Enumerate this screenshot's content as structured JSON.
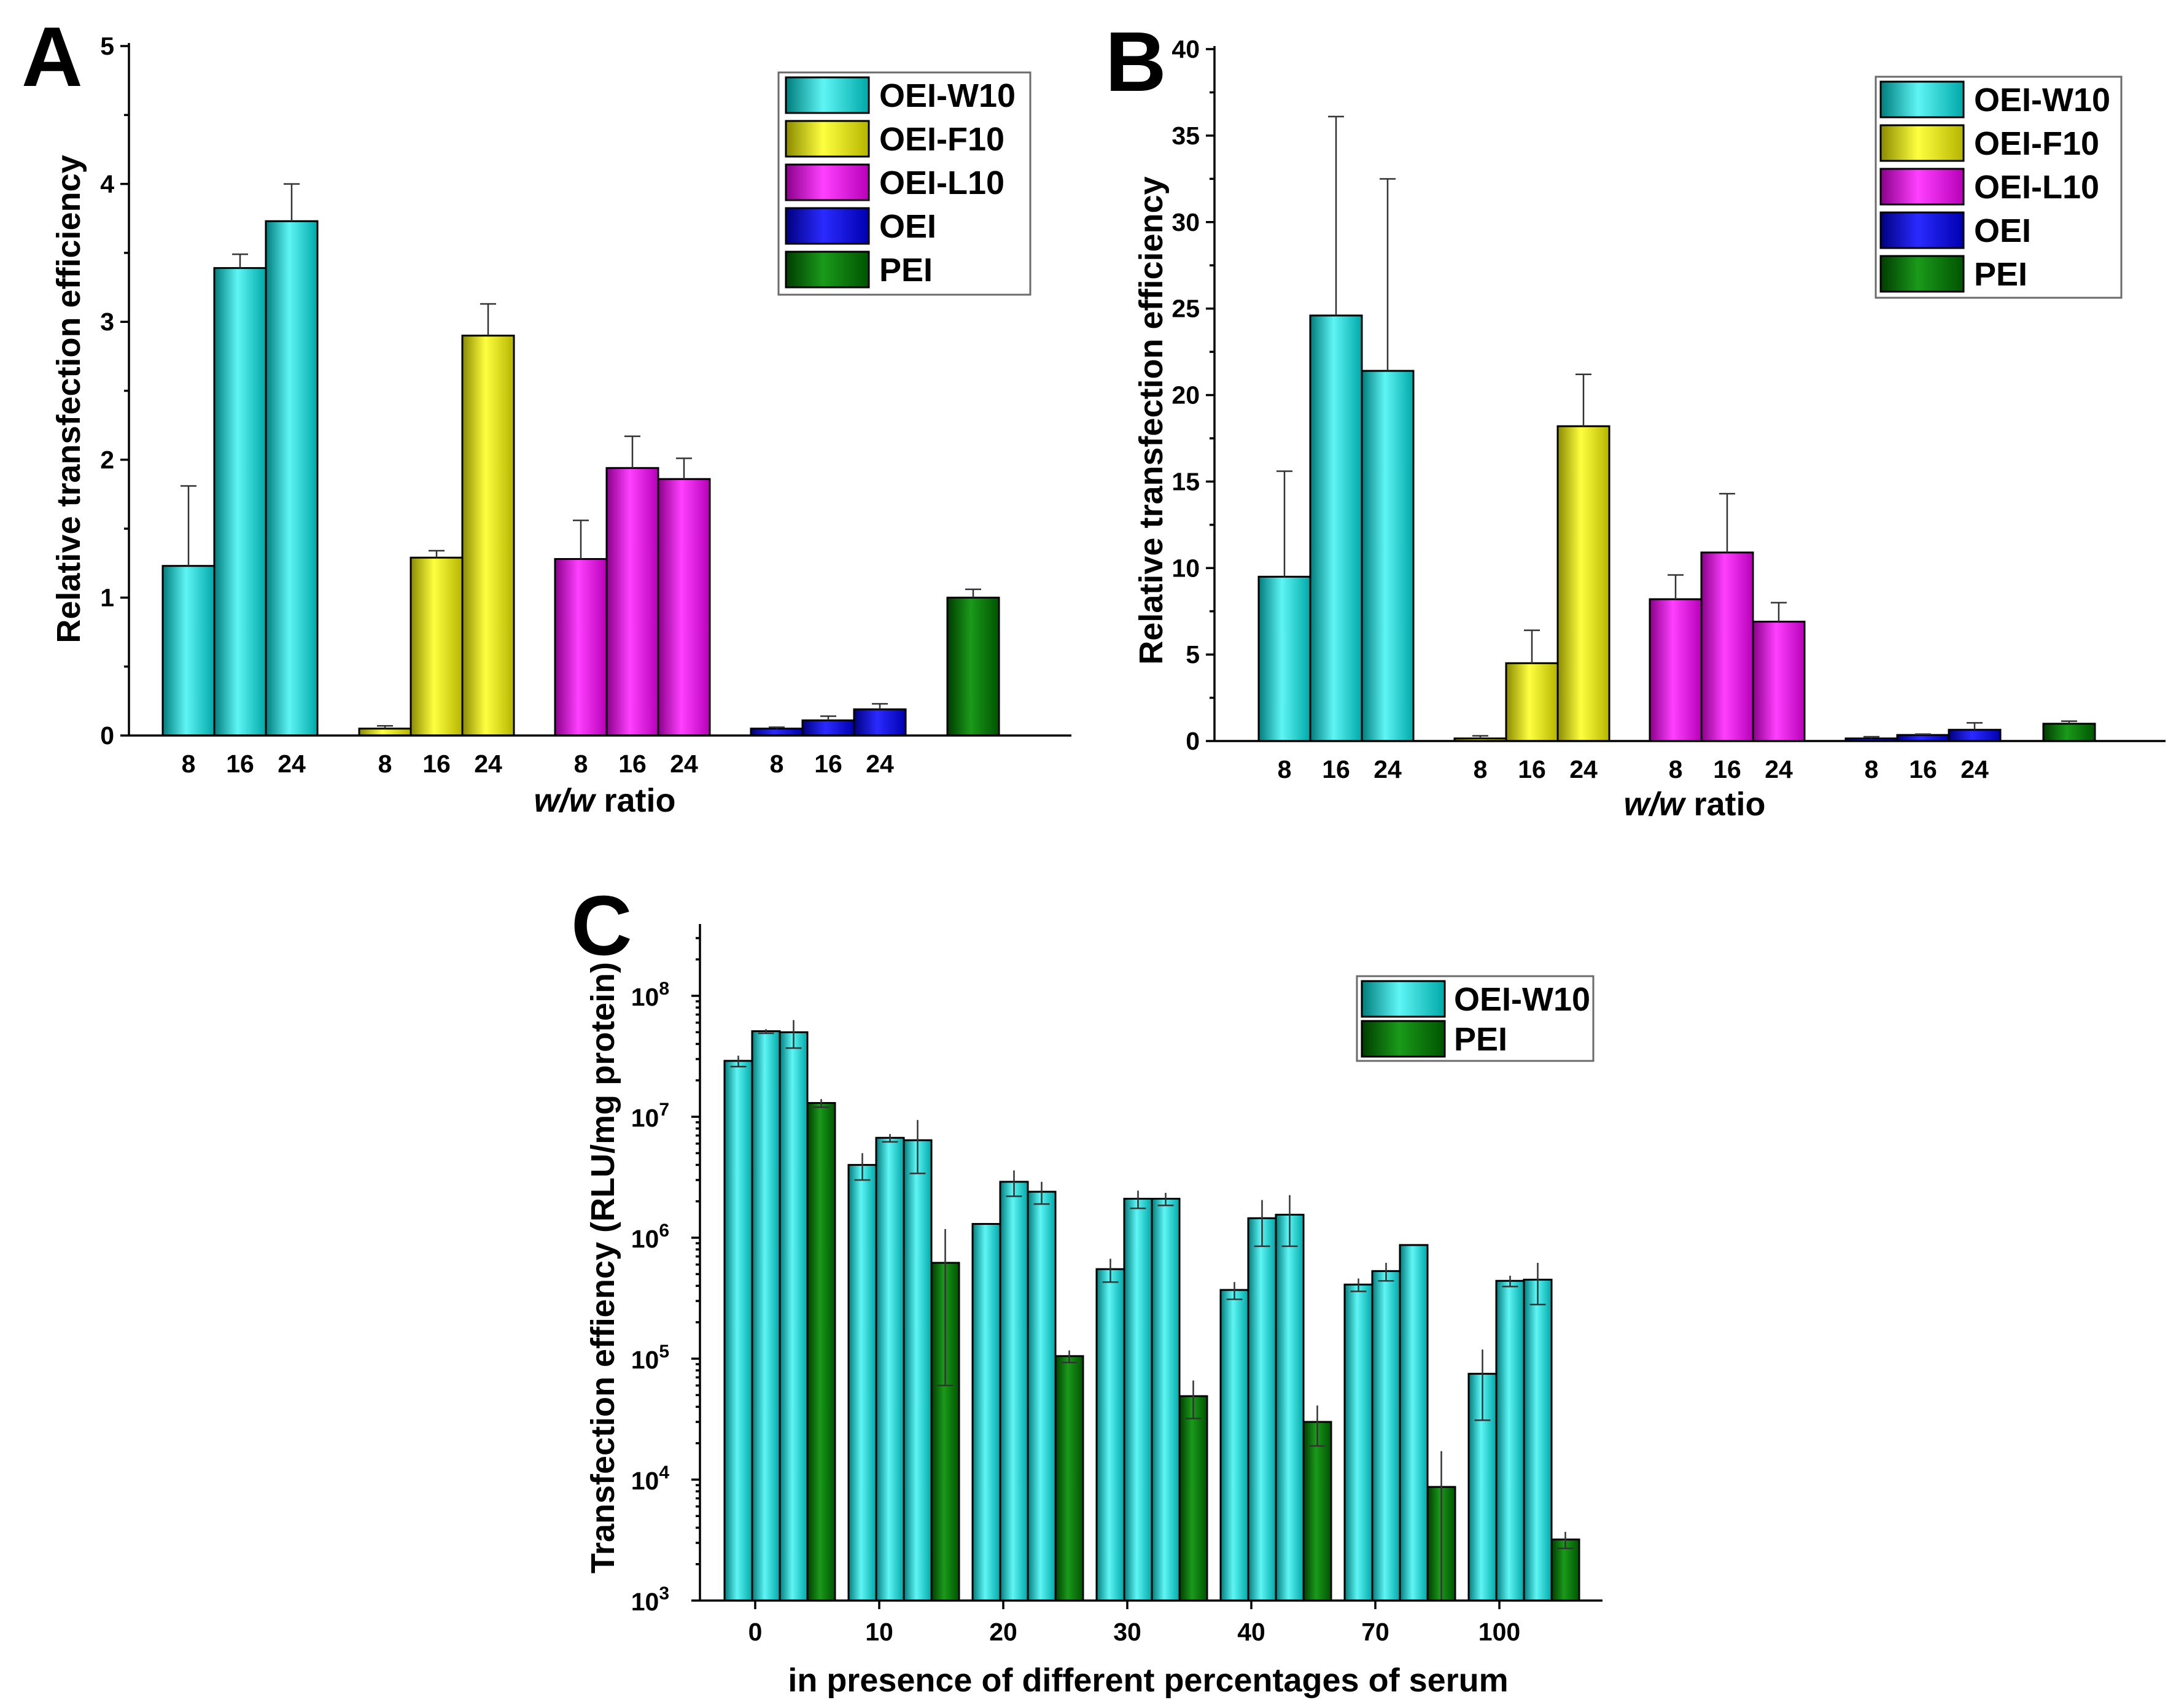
{
  "colors": {
    "OEI-W10": "#00d2d2",
    "OEI-F10": "#e0e000",
    "OEI-L10": "#e600e6",
    "OEI": "#0000d8",
    "PEI": "#006f00"
  },
  "chart_data": [
    {
      "panel": "A",
      "type": "bar",
      "ylabel": "Relative transfection efficiency",
      "xlabel_italic": "w/w",
      "xlabel_rest": " ratio",
      "ylim": [
        0,
        5
      ],
      "yticks": [
        "0",
        "1",
        "2",
        "3",
        "4",
        "5"
      ],
      "legend": [
        "OEI-W10",
        "OEI-F10",
        "OEI-L10",
        "OEI",
        "PEI"
      ],
      "groups": [
        {
          "series": "OEI-W10",
          "bars": [
            {
              "label": "8",
              "value": 1.23,
              "err": 0.58
            },
            {
              "label": "16",
              "value": 3.39,
              "err": 0.1
            },
            {
              "label": "24",
              "value": 3.73,
              "err": 0.27
            }
          ]
        },
        {
          "series": "OEI-F10",
          "bars": [
            {
              "label": "8",
              "value": 0.05,
              "err": 0.02
            },
            {
              "label": "16",
              "value": 1.29,
              "err": 0.05
            },
            {
              "label": "24",
              "value": 2.9,
              "err": 0.23
            }
          ]
        },
        {
          "series": "OEI-L10",
          "bars": [
            {
              "label": "8",
              "value": 1.28,
              "err": 0.28
            },
            {
              "label": "16",
              "value": 1.94,
              "err": 0.23
            },
            {
              "label": "24",
              "value": 1.86,
              "err": 0.15
            }
          ]
        },
        {
          "series": "OEI",
          "bars": [
            {
              "label": "8",
              "value": 0.05,
              "err": 0.01
            },
            {
              "label": "16",
              "value": 0.11,
              "err": 0.03
            },
            {
              "label": "24",
              "value": 0.19,
              "err": 0.04
            }
          ]
        },
        {
          "series": "PEI",
          "bars": [
            {
              "label": "",
              "value": 1.0,
              "err": 0.06
            }
          ]
        }
      ]
    },
    {
      "panel": "B",
      "type": "bar",
      "ylabel": "Relative transfection efficiency",
      "xlabel_italic": "w/w",
      "xlabel_rest": " ratio",
      "ylim": [
        0,
        40
      ],
      "yticks": [
        "0",
        "5",
        "10",
        "15",
        "20",
        "25",
        "30",
        "35",
        "40"
      ],
      "legend": [
        "OEI-W10",
        "OEI-F10",
        "OEI-L10",
        "OEI",
        "PEI"
      ],
      "groups": [
        {
          "series": "OEI-W10",
          "bars": [
            {
              "label": "8",
              "value": 9.5,
              "err": 6.1
            },
            {
              "label": "16",
              "value": 24.6,
              "err": 11.5
            },
            {
              "label": "24",
              "value": 21.4,
              "err": 11.1
            }
          ]
        },
        {
          "series": "OEI-F10",
          "bars": [
            {
              "label": "8",
              "value": 0.15,
              "err": 0.15
            },
            {
              "label": "16",
              "value": 4.5,
              "err": 1.9
            },
            {
              "label": "24",
              "value": 18.2,
              "err": 3.0
            }
          ]
        },
        {
          "series": "OEI-L10",
          "bars": [
            {
              "label": "8",
              "value": 8.2,
              "err": 1.4
            },
            {
              "label": "16",
              "value": 10.9,
              "err": 3.4
            },
            {
              "label": "24",
              "value": 6.9,
              "err": 1.1
            }
          ]
        },
        {
          "series": "OEI",
          "bars": [
            {
              "label": "8",
              "value": 0.15,
              "err": 0.1
            },
            {
              "label": "16",
              "value": 0.35,
              "err": 0.05
            },
            {
              "label": "24",
              "value": 0.65,
              "err": 0.4
            }
          ]
        },
        {
          "series": "PEI",
          "bars": [
            {
              "label": "",
              "value": 1.0,
              "err": 0.15
            }
          ]
        }
      ]
    },
    {
      "panel": "C",
      "type": "bar",
      "yscale": "log",
      "ylabel": "Transfection effiency (RLU/mg protein)",
      "xlabel": "in presence of different percentages of serum",
      "ylim": [
        1000,
        500000000
      ],
      "yticks": [
        {
          "base": "10",
          "exp": "3"
        },
        {
          "base": "10",
          "exp": "4"
        },
        {
          "base": "10",
          "exp": "5"
        },
        {
          "base": "10",
          "exp": "6"
        },
        {
          "base": "10",
          "exp": "7"
        },
        {
          "base": "10",
          "exp": "8"
        }
      ],
      "legend": [
        "OEI-W10",
        "PEI"
      ],
      "categories": [
        "0",
        "10",
        "20",
        "30",
        "40",
        "70",
        "100"
      ],
      "groups": [
        {
          "category": "0",
          "OEI-W10": [
            {
              "v": 29000000,
              "e": 3000000
            },
            {
              "v": 51000000,
              "e": 2000000
            },
            {
              "v": 50000000,
              "e": 13000000
            }
          ],
          "PEI": {
            "v": 13000000,
            "e": 1000000
          }
        },
        {
          "category": "10",
          "OEI-W10": [
            {
              "v": 4000000,
              "e": 1000000
            },
            {
              "v": 6700000,
              "e": 500000
            },
            {
              "v": 6400000,
              "e": 3000000
            }
          ],
          "PEI": {
            "v": 620000,
            "e": 560000
          }
        },
        {
          "category": "20",
          "OEI-W10": [
            {
              "v": 1300000,
              "e": 0
            },
            {
              "v": 2900000,
              "e": 700000
            },
            {
              "v": 2400000,
              "e": 500000
            }
          ],
          "PEI": {
            "v": 105000,
            "e": 12000
          }
        },
        {
          "category": "30",
          "OEI-W10": [
            {
              "v": 550000,
              "e": 120000
            },
            {
              "v": 2100000,
              "e": 350000
            },
            {
              "v": 2100000,
              "e": 250000
            }
          ],
          "PEI": {
            "v": 49000,
            "e": 17000
          }
        },
        {
          "category": "40",
          "OEI-W10": [
            {
              "v": 370000,
              "e": 60000
            },
            {
              "v": 1450000,
              "e": 600000
            },
            {
              "v": 1550000,
              "e": 700000
            }
          ],
          "PEI": {
            "v": 30000,
            "e": 11000
          }
        },
        {
          "category": "70",
          "OEI-W10": [
            {
              "v": 410000,
              "e": 50000
            },
            {
              "v": 530000,
              "e": 90000
            },
            {
              "v": 870000,
              "e": 0
            }
          ],
          "PEI": {
            "v": 8700,
            "e": 8500
          }
        },
        {
          "category": "100",
          "OEI-W10": [
            {
              "v": 75000,
              "e": 44000
            },
            {
              "v": 440000,
              "e": 45000
            },
            {
              "v": 450000,
              "e": 170000
            }
          ],
          "PEI": {
            "v": 3200,
            "e": 500
          }
        }
      ]
    }
  ]
}
